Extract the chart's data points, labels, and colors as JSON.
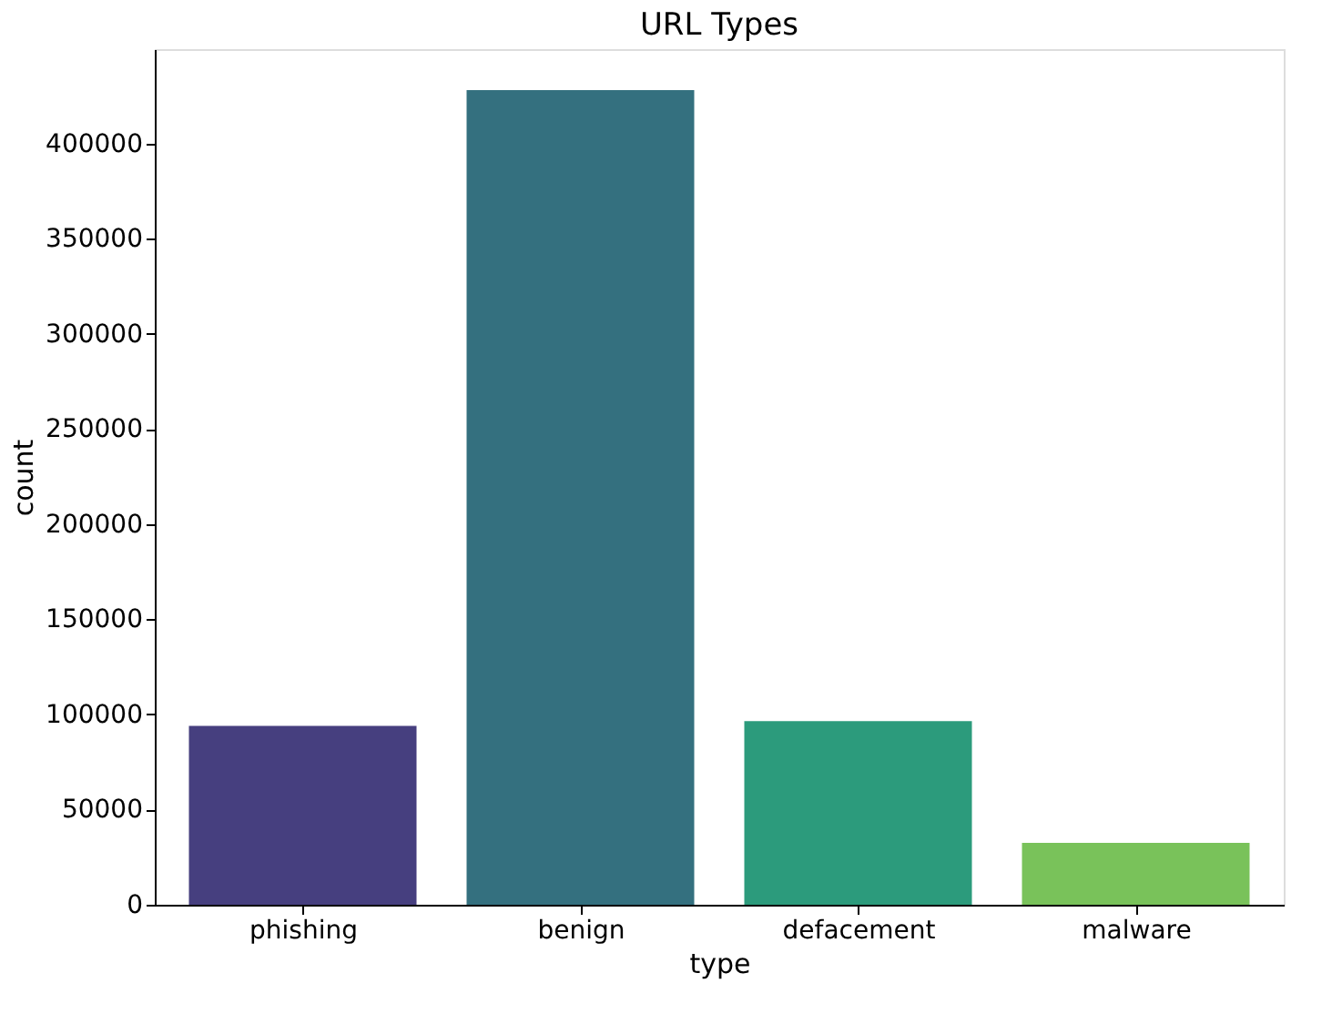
{
  "chart_data": {
    "type": "bar",
    "title": "URL Types",
    "xlabel": "type",
    "ylabel": "count",
    "categories": [
      "phishing",
      "benign",
      "defacement",
      "malware"
    ],
    "values": [
      94000,
      428000,
      96500,
      32500
    ],
    "colors": [
      "#463f7f",
      "#34707f",
      "#2c9b7c",
      "#79c25a"
    ],
    "ylim": [
      0,
      449500
    ],
    "yticks": [
      0,
      50000,
      100000,
      150000,
      200000,
      250000,
      300000,
      350000,
      400000
    ],
    "grid": false
  }
}
